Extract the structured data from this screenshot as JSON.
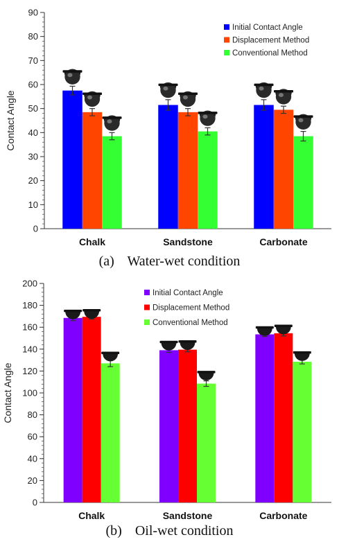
{
  "chart_data": [
    {
      "type": "bar",
      "panel": "a",
      "caption_label": "(a)",
      "caption_text": "Water-wet condition",
      "title": "",
      "xlabel": "",
      "ylabel": "Contact Angle",
      "ylim": [
        0,
        90
      ],
      "yticks": [
        0,
        10,
        20,
        30,
        40,
        50,
        60,
        70,
        80,
        90
      ],
      "grid": false,
      "legend_position": "top-right",
      "categories": [
        "Chalk",
        "Sandstone",
        "Carbonate"
      ],
      "series": [
        {
          "name": "Initial Contact Angle",
          "color": "#0000ff",
          "values": [
            57.5,
            51.5,
            51.5
          ],
          "errors": [
            1.8,
            2.2,
            2.2
          ]
        },
        {
          "name": "Displacement Method",
          "color": "#ff4500",
          "values": [
            48.5,
            48.5,
            49.5
          ],
          "errors": [
            1.5,
            1.5,
            1.5
          ]
        },
        {
          "name": "Conventional Method",
          "color": "#33ff33",
          "values": [
            38.5,
            40.5,
            38.5
          ],
          "errors": [
            1.5,
            1.5,
            2.0
          ]
        }
      ],
      "droplet_icons": "droplet-images-above-bars"
    },
    {
      "type": "bar",
      "panel": "b",
      "caption_label": "(b)",
      "caption_text": "Oil-wet condition",
      "title": "",
      "xlabel": "",
      "ylabel": "Contact Angle",
      "ylim": [
        0,
        200
      ],
      "yticks": [
        0,
        20,
        40,
        60,
        80,
        100,
        120,
        140,
        160,
        180,
        200
      ],
      "grid": false,
      "legend_position": "top-right",
      "categories": [
        "Chalk",
        "Sandstone",
        "Carbonate"
      ],
      "series": [
        {
          "name": "Initial Contact Angle",
          "color": "#7f00ff",
          "values": [
            168.5,
            139,
            153.5
          ],
          "errors": [
            2.5,
            2.0,
            2.0
          ]
        },
        {
          "name": "Displacement Method",
          "color": "#ff0000",
          "values": [
            169.5,
            139.5,
            154.5
          ],
          "errors": [
            2.0,
            2.0,
            2.5
          ]
        },
        {
          "name": "Conventional Method",
          "color": "#66ff33",
          "values": [
            127,
            108.5,
            128.5
          ],
          "errors": [
            3.0,
            2.5,
            2.0
          ]
        }
      ],
      "droplet_icons": "droplet-images-above-bars"
    }
  ]
}
